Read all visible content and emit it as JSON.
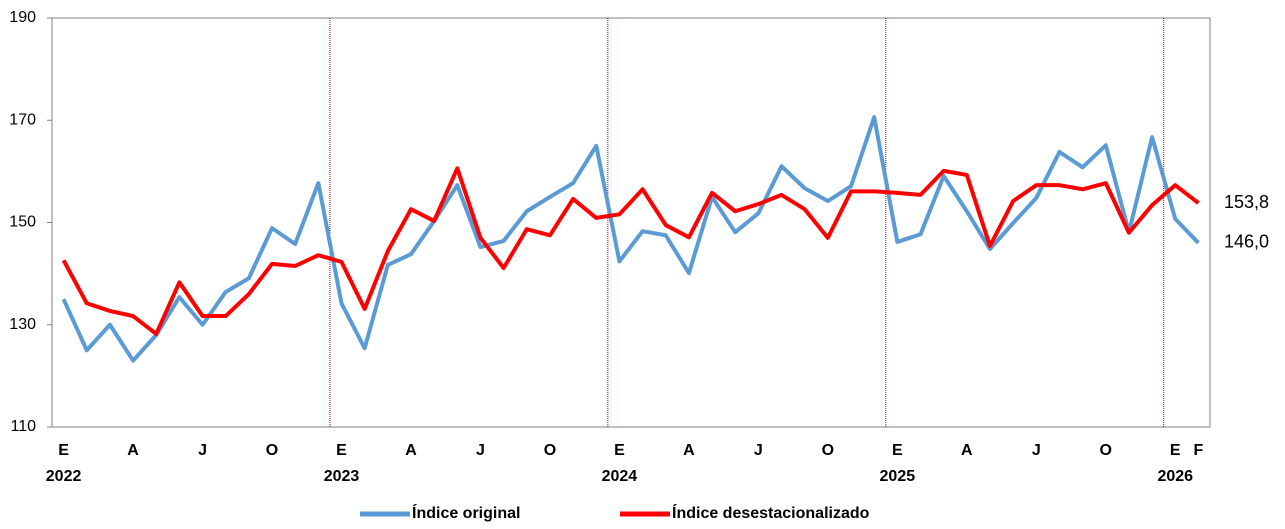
{
  "chart_data": {
    "type": "line",
    "categories": [
      "E",
      null,
      null,
      "A",
      null,
      null,
      "J",
      null,
      null,
      "O",
      null,
      null,
      "E",
      null,
      null,
      "A",
      null,
      null,
      "J",
      null,
      null,
      "O",
      null,
      null,
      "E",
      null,
      null,
      "A",
      null,
      null,
      "J",
      null,
      null,
      "O",
      null,
      null,
      "E",
      null,
      null,
      "A",
      null,
      null,
      "J",
      null,
      null,
      "O",
      null,
      null,
      "E",
      "F"
    ],
    "years": [
      "2022",
      "2023",
      "2024",
      "2025",
      "2026"
    ],
    "ylim": [
      110,
      190
    ],
    "yticks": [
      110,
      130,
      150,
      170,
      190
    ],
    "series": [
      {
        "name": "Índice original",
        "color": "#5b9bd5",
        "values": [
          135,
          125,
          130,
          123,
          128,
          135.4,
          130,
          136.4,
          139.1,
          148.9,
          145.8,
          157.7,
          134.2,
          125.4,
          141.7,
          143.8,
          150.3,
          157.3,
          145.2,
          146.4,
          152.2,
          155,
          157.7,
          165,
          142.4,
          148.3,
          147.5,
          140.1,
          155,
          148.1,
          151.8,
          161,
          156.7,
          154.2,
          157.1,
          170.6,
          146.2,
          147.7,
          159.1,
          152.2,
          144.8,
          149.9,
          154.8,
          163.8,
          160.8,
          165.1,
          148.1,
          166.7,
          150.7,
          146.0
        ],
        "value_labels": [
          null,
          null,
          null,
          null,
          null,
          null,
          null,
          null,
          null,
          null,
          null,
          null,
          null,
          null,
          null,
          null,
          null,
          null,
          null,
          null,
          null,
          null,
          null,
          null,
          null,
          null,
          null,
          null,
          null,
          null,
          null,
          null,
          null,
          null,
          null,
          null,
          null,
          null,
          null,
          null,
          null,
          null,
          null,
          null,
          null,
          null,
          null,
          null,
          null,
          "146,0"
        ],
        "label_color": "#000000"
      },
      {
        "name": "Índice desestacionalizado",
        "color": "#ff0000",
        "values": [
          142.6,
          134.2,
          132.7,
          131.7,
          128.2,
          138.3,
          131.7,
          131.7,
          136,
          141.9,
          141.5,
          143.6,
          142.3,
          133.1,
          144.4,
          152.6,
          150.3,
          160.6,
          147,
          141.1,
          148.7,
          147.5,
          154.6,
          150.9,
          151.6,
          156.5,
          149.5,
          147.1,
          155.8,
          152.2,
          153.6,
          155.4,
          152.6,
          147,
          156.1,
          156.1,
          155.8,
          155.4,
          160.1,
          159.3,
          145.4,
          154.2,
          157.3,
          157.3,
          156.5,
          157.7,
          148,
          153.4,
          157.3,
          153.8
        ],
        "value_labels": [
          null,
          null,
          null,
          null,
          null,
          null,
          null,
          null,
          null,
          null,
          null,
          null,
          null,
          null,
          null,
          null,
          null,
          null,
          null,
          null,
          null,
          null,
          null,
          null,
          null,
          null,
          null,
          null,
          null,
          null,
          null,
          null,
          null,
          null,
          null,
          null,
          null,
          null,
          null,
          null,
          null,
          null,
          null,
          null,
          null,
          null,
          null,
          null,
          null,
          "153,8"
        ],
        "label_color": "#c00000"
      }
    ],
    "year_separator_color": "#c00000",
    "legend": "bottom"
  }
}
